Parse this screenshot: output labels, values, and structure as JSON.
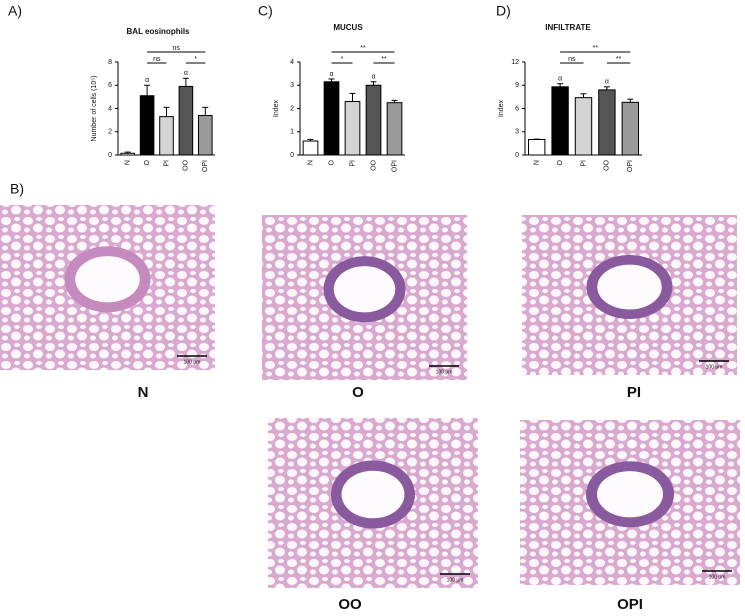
{
  "chart_data": [
    {
      "type": "bar",
      "panel": "A)",
      "title": "BAL eosinophils",
      "ylabel": "Number of cells (10⁵)",
      "categories": [
        "N",
        "O",
        "PI",
        "OO",
        "OPI"
      ],
      "series": [
        {
          "values": [
            0.15,
            5.1,
            3.3,
            5.9,
            3.4
          ],
          "errors": [
            0.1,
            0.9,
            0.8,
            0.7,
            0.7
          ],
          "colors": [
            "#ffffff",
            "#000000",
            "#d4d4d4",
            "#555555",
            "#9a9a9a"
          ]
        }
      ],
      "ylim": [
        0,
        8
      ],
      "yticks": [
        0,
        2,
        4,
        6,
        8
      ],
      "annotations": [
        {
          "text": "α",
          "at": "O"
        },
        {
          "text": "α",
          "at": "OO"
        }
      ],
      "brackets": [
        {
          "text": "ns",
          "between": [
            "O",
            "PI"
          ]
        },
        {
          "text": "ns",
          "between": [
            "O",
            "OPI"
          ]
        },
        {
          "text": "*",
          "between": [
            "OO",
            "OPI"
          ]
        }
      ]
    },
    {
      "type": "bar",
      "panel": "C)",
      "title": "MUCUS",
      "ylabel": "Index",
      "categories": [
        "N",
        "O",
        "PI",
        "OO",
        "OPI"
      ],
      "series": [
        {
          "values": [
            0.6,
            3.15,
            2.3,
            3.0,
            2.25
          ],
          "errors": [
            0.07,
            0.12,
            0.35,
            0.15,
            0.1
          ],
          "colors": [
            "#ffffff",
            "#000000",
            "#d4d4d4",
            "#555555",
            "#9a9a9a"
          ]
        }
      ],
      "ylim": [
        0,
        4
      ],
      "yticks": [
        0,
        1,
        2,
        3,
        4
      ],
      "annotations": [
        {
          "text": "α",
          "at": "O"
        },
        {
          "text": "α",
          "at": "OO"
        }
      ],
      "brackets": [
        {
          "text": "*",
          "between": [
            "O",
            "PI"
          ]
        },
        {
          "text": "**",
          "between": [
            "O",
            "OPI"
          ]
        },
        {
          "text": "**",
          "between": [
            "OO",
            "OPI"
          ]
        }
      ]
    },
    {
      "type": "bar",
      "panel": "D)",
      "title": "INFILTRATE",
      "ylabel": "Index",
      "categories": [
        "N",
        "O",
        "PI",
        "OO",
        "OPI"
      ],
      "series": [
        {
          "values": [
            2.0,
            8.8,
            7.4,
            8.4,
            6.8
          ],
          "errors": [
            0.05,
            0.4,
            0.5,
            0.4,
            0.4
          ],
          "colors": [
            "#ffffff",
            "#000000",
            "#d4d4d4",
            "#555555",
            "#9a9a9a"
          ]
        }
      ],
      "ylim": [
        0,
        12
      ],
      "yticks": [
        0,
        3,
        6,
        9,
        12
      ],
      "annotations": [
        {
          "text": "α",
          "at": "O"
        },
        {
          "text": "α",
          "at": "OO"
        }
      ],
      "brackets": [
        {
          "text": "ns",
          "between": [
            "O",
            "PI"
          ]
        },
        {
          "text": "**",
          "between": [
            "O",
            "OPI"
          ]
        },
        {
          "text": "**",
          "between": [
            "OO",
            "OPI"
          ]
        }
      ]
    }
  ],
  "panel_b": {
    "label": "B)",
    "images": [
      {
        "caption": "N",
        "scale": "100 µm"
      },
      {
        "caption": "O",
        "scale": "100 µm"
      },
      {
        "caption": "PI",
        "scale": "100 µm"
      },
      {
        "caption": "OO",
        "scale": "100 µm"
      },
      {
        "caption": "OPI",
        "scale": "100 µm"
      }
    ]
  }
}
